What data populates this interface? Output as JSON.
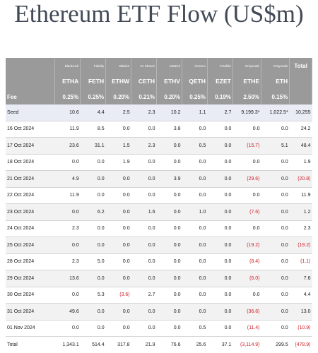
{
  "title": "Ethereum ETF Flow (US$m)",
  "colors": {
    "header_bg": "#9a9a9a",
    "negative": "#d0202a",
    "title": "#424a57",
    "stripe": "#f2f2f2",
    "seed_row": "#e9ecf4"
  },
  "table": {
    "issuers": [
      "Blackrock",
      "Fidelity",
      "Bitwise",
      "21 Shares",
      "VanEck",
      "Invesco",
      "Franklin",
      "Grayscale",
      "Grayscale"
    ],
    "total_label": "Total",
    "tickers": [
      "ETHA",
      "FETH",
      "ETHW",
      "CETH",
      "ETHV",
      "QETH",
      "EZET",
      "ETHE",
      "ETH"
    ],
    "fee_label": "Fee",
    "fees": [
      "0.25%",
      "0.25%",
      "0.20%",
      "0.21%",
      "0.20%",
      "0.25%",
      "0.19%",
      "2.50%",
      "0.15%"
    ],
    "rows": [
      {
        "date": "Seed",
        "values": [
          "10.6",
          "4.4",
          "2.5",
          "2.3",
          "10.2",
          "1.1",
          "2.7",
          "9,199.3*",
          "1,022.5*"
        ],
        "total": "10,255"
      },
      {
        "date": "16 Oct 2024",
        "values": [
          "11.9",
          "8.5",
          "0.0",
          "0.0",
          "3.8",
          "0.0",
          "0.0",
          "0.0",
          "0.0"
        ],
        "total": "24.2"
      },
      {
        "date": "17 Oct 2024",
        "values": [
          "23.6",
          "31.1",
          "1.5",
          "2.3",
          "0.0",
          "0.5",
          "0.0",
          "(15.7)",
          "5.1"
        ],
        "total": "48.4"
      },
      {
        "date": "18 Oct 2024",
        "values": [
          "0.0",
          "0.0",
          "1.9",
          "0.0",
          "0.0",
          "0.0",
          "0.0",
          "0.0",
          "0.0"
        ],
        "total": "1.9"
      },
      {
        "date": "21 Oct 2024",
        "values": [
          "4.9",
          "0.0",
          "0.0",
          "0.0",
          "3.9",
          "0.0",
          "0.0",
          "(29.6)",
          "0.0"
        ],
        "total": "(20.8)"
      },
      {
        "date": "22 Oct 2024",
        "values": [
          "11.9",
          "0.0",
          "0.0",
          "0.0",
          "0.0",
          "0.0",
          "0.0",
          "0.0",
          "0.0"
        ],
        "total": "11.9"
      },
      {
        "date": "23 Oct 2024",
        "values": [
          "0.0",
          "6.2",
          "0.0",
          "1.6",
          "0.0",
          "1.0",
          "0.0",
          "(7.6)",
          "0.0"
        ],
        "total": "1.2"
      },
      {
        "date": "24 Oct 2024",
        "values": [
          "2.3",
          "0.0",
          "0.0",
          "0.0",
          "0.0",
          "0.0",
          "0.0",
          "0.0",
          "0.0"
        ],
        "total": "2.3"
      },
      {
        "date": "25 Oct 2024",
        "values": [
          "0.0",
          "0.0",
          "0.0",
          "0.0",
          "0.0",
          "0.0",
          "0.0",
          "(19.2)",
          "0.0"
        ],
        "total": "(19.2)"
      },
      {
        "date": "28 Oct 2024",
        "values": [
          "2.3",
          "5.0",
          "0.0",
          "0.0",
          "0.0",
          "0.0",
          "0.0",
          "(8.4)",
          "0.0"
        ],
        "total": "(1.1)"
      },
      {
        "date": "29 Oct 2024",
        "values": [
          "13.6",
          "0.0",
          "0.0",
          "0.0",
          "0.0",
          "0.0",
          "0.0",
          "(6.0)",
          "0.0"
        ],
        "total": "7.6"
      },
      {
        "date": "30 Oct 2024",
        "values": [
          "0.0",
          "5.3",
          "(3.6)",
          "2.7",
          "0.0",
          "0.0",
          "0.0",
          "0.0",
          "0.0"
        ],
        "total": "4.4"
      },
      {
        "date": "31 Oct 2024",
        "values": [
          "49.6",
          "0.0",
          "0.0",
          "0.0",
          "0.0",
          "0.0",
          "0.0",
          "(36.6)",
          "0.0"
        ],
        "total": "13.0"
      },
      {
        "date": "01 Nov 2024",
        "values": [
          "0.0",
          "0.0",
          "0.0",
          "0.0",
          "0.0",
          "0.5",
          "0.0",
          "(11.4)",
          "0.0"
        ],
        "total": "(10.9)"
      },
      {
        "date": "Total",
        "values": [
          "1,343.1",
          "514.4",
          "317.8",
          "21.9",
          "76.6",
          "25.6",
          "37.1",
          "(3,114.9)",
          "299.5"
        ],
        "total": "(478.9)"
      }
    ]
  }
}
